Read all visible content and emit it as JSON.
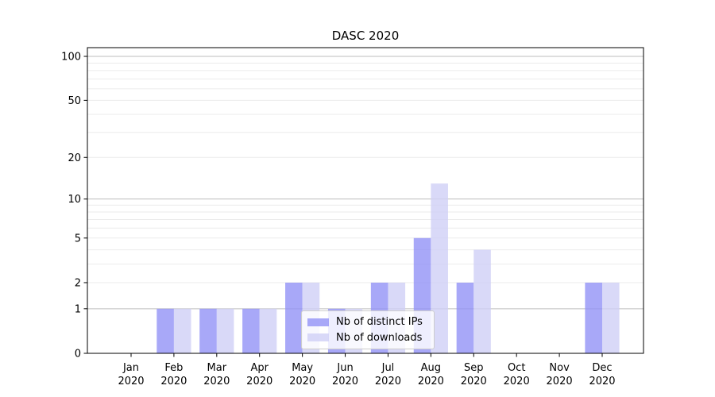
{
  "chart_data": {
    "type": "bar",
    "title": "DASC 2020",
    "categories": [
      {
        "month": "Jan",
        "year": "2020"
      },
      {
        "month": "Feb",
        "year": "2020"
      },
      {
        "month": "Mar",
        "year": "2020"
      },
      {
        "month": "Apr",
        "year": "2020"
      },
      {
        "month": "May",
        "year": "2020"
      },
      {
        "month": "Jun",
        "year": "2020"
      },
      {
        "month": "Jul",
        "year": "2020"
      },
      {
        "month": "Aug",
        "year": "2020"
      },
      {
        "month": "Sep",
        "year": "2020"
      },
      {
        "month": "Oct",
        "year": "2020"
      },
      {
        "month": "Nov",
        "year": "2020"
      },
      {
        "month": "Dec",
        "year": "2020"
      }
    ],
    "series": [
      {
        "name": "Nb of distinct IPs",
        "color": "#9292f6",
        "fill_opacity": 0.8,
        "values": [
          0,
          1,
          1,
          1,
          2,
          1,
          2,
          5,
          2,
          0,
          0,
          2
        ]
      },
      {
        "name": "Nb of downloads",
        "color": "#d0d0f6",
        "fill_opacity": 0.8,
        "values": [
          0,
          1,
          1,
          1,
          2,
          1,
          2,
          13,
          4,
          0,
          0,
          2
        ]
      }
    ],
    "y_scale": "log1p",
    "y_ticks": [
      0,
      1,
      2,
      5,
      10,
      20,
      50,
      100
    ],
    "y_gridlines_major": [
      1,
      10,
      100
    ],
    "y_gridlines_minor": [
      2,
      3,
      4,
      5,
      6,
      7,
      8,
      9,
      20,
      30,
      40,
      50,
      60,
      70,
      80,
      90
    ],
    "ylim": [
      0,
      115
    ],
    "legend": {
      "position": "lower center",
      "entries": [
        "Nb of distinct IPs",
        "Nb of downloads"
      ]
    },
    "colors": {
      "grid_major": "#bdbdbd",
      "grid_minor": "#ebebeb",
      "spine": "#000000",
      "text": "#000000",
      "background": "#ffffff"
    }
  }
}
